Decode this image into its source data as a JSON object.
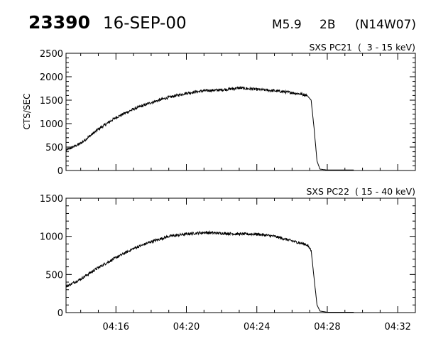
{
  "header": {
    "event_id": "23390",
    "date": "16-SEP-00",
    "flare_class": "M5.9",
    "optical_class": "2B",
    "location": "(N14W07)"
  },
  "chart_data": [
    {
      "type": "line",
      "title": "SXS PC21  (  3 - 15 keV)",
      "ylabel": "CTS/SEC",
      "xlabel": "",
      "xlim": [
        "04:13:10",
        "04:33:00"
      ],
      "ylim": [
        0,
        2500
      ],
      "yticks": [
        0,
        500,
        1000,
        1500,
        2000,
        2500
      ],
      "xticks": [
        "04:16",
        "04:20",
        "04:24",
        "04:28",
        "04:32"
      ],
      "show_xtick_labels": false,
      "grid": false,
      "series": [
        {
          "x": [
            "04:13:10",
            "04:14:00",
            "04:15:00",
            "04:16:00",
            "04:17:00",
            "04:18:00",
            "04:19:00",
            "04:20:00",
            "04:21:00",
            "04:22:00",
            "04:23:00",
            "04:24:00",
            "04:25:00",
            "04:26:00",
            "04:26:50",
            "04:27:05",
            "04:27:15",
            "04:27:25",
            "04:27:35",
            "04:28:00",
            "04:29:30"
          ],
          "values": [
            430,
            580,
            880,
            1130,
            1310,
            1450,
            1560,
            1650,
            1700,
            1720,
            1760,
            1730,
            1700,
            1660,
            1610,
            1500,
            900,
            200,
            30,
            10,
            10
          ]
        }
      ]
    },
    {
      "type": "line",
      "title": "SXS PC22  ( 15 - 40 keV)",
      "ylabel": "",
      "xlabel": "",
      "xlim": [
        "04:13:10",
        "04:33:00"
      ],
      "ylim": [
        0,
        1500
      ],
      "yticks": [
        0,
        500,
        1000,
        1500
      ],
      "xticks": [
        "04:16",
        "04:20",
        "04:24",
        "04:28",
        "04:32"
      ],
      "show_xtick_labels": true,
      "grid": false,
      "series": [
        {
          "x": [
            "04:13:10",
            "04:14:00",
            "04:15:00",
            "04:16:00",
            "04:17:00",
            "04:18:00",
            "04:19:00",
            "04:20:00",
            "04:21:00",
            "04:22:00",
            "04:23:00",
            "04:24:00",
            "04:25:00",
            "04:26:00",
            "04:26:50",
            "04:27:05",
            "04:27:15",
            "04:27:25",
            "04:27:35",
            "04:28:00",
            "04:29:30"
          ],
          "values": [
            340,
            440,
            590,
            720,
            840,
            930,
            1000,
            1030,
            1050,
            1040,
            1030,
            1030,
            1000,
            940,
            890,
            820,
            450,
            100,
            20,
            5,
            5
          ]
        }
      ]
    }
  ]
}
